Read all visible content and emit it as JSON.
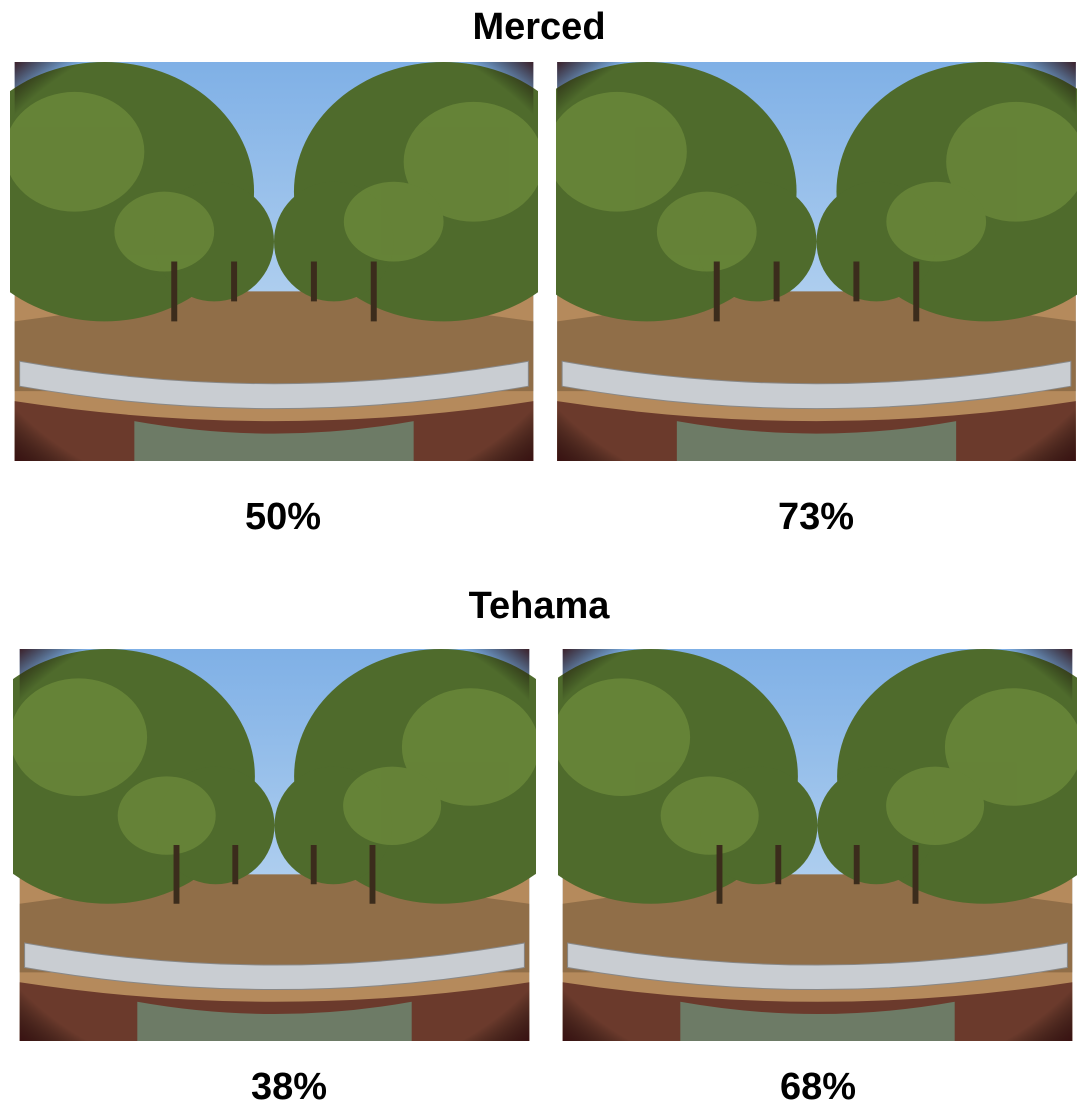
{
  "sections": [
    {
      "title": "Merced",
      "photos": [
        {
          "label": "50%"
        },
        {
          "label": "73%"
        }
      ]
    },
    {
      "title": "Tehama",
      "photos": [
        {
          "label": "38%"
        },
        {
          "label": "68%"
        }
      ]
    }
  ]
}
